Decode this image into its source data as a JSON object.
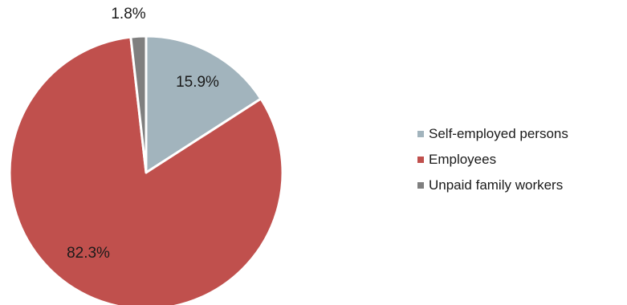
{
  "chart_data": {
    "type": "pie",
    "title": "",
    "slices": [
      {
        "label": "Self-employed persons",
        "value": 15.9,
        "display": "15.9%",
        "color": "#a2b4bd"
      },
      {
        "label": "Employees",
        "value": 82.3,
        "display": "82.3%",
        "color": "#c0504d"
      },
      {
        "label": "Unpaid family workers",
        "value": 1.8,
        "display": "1.8%",
        "color": "#7f7f7f"
      }
    ],
    "start_angle_deg": 0,
    "direction": "clockwise",
    "legend": "right"
  }
}
